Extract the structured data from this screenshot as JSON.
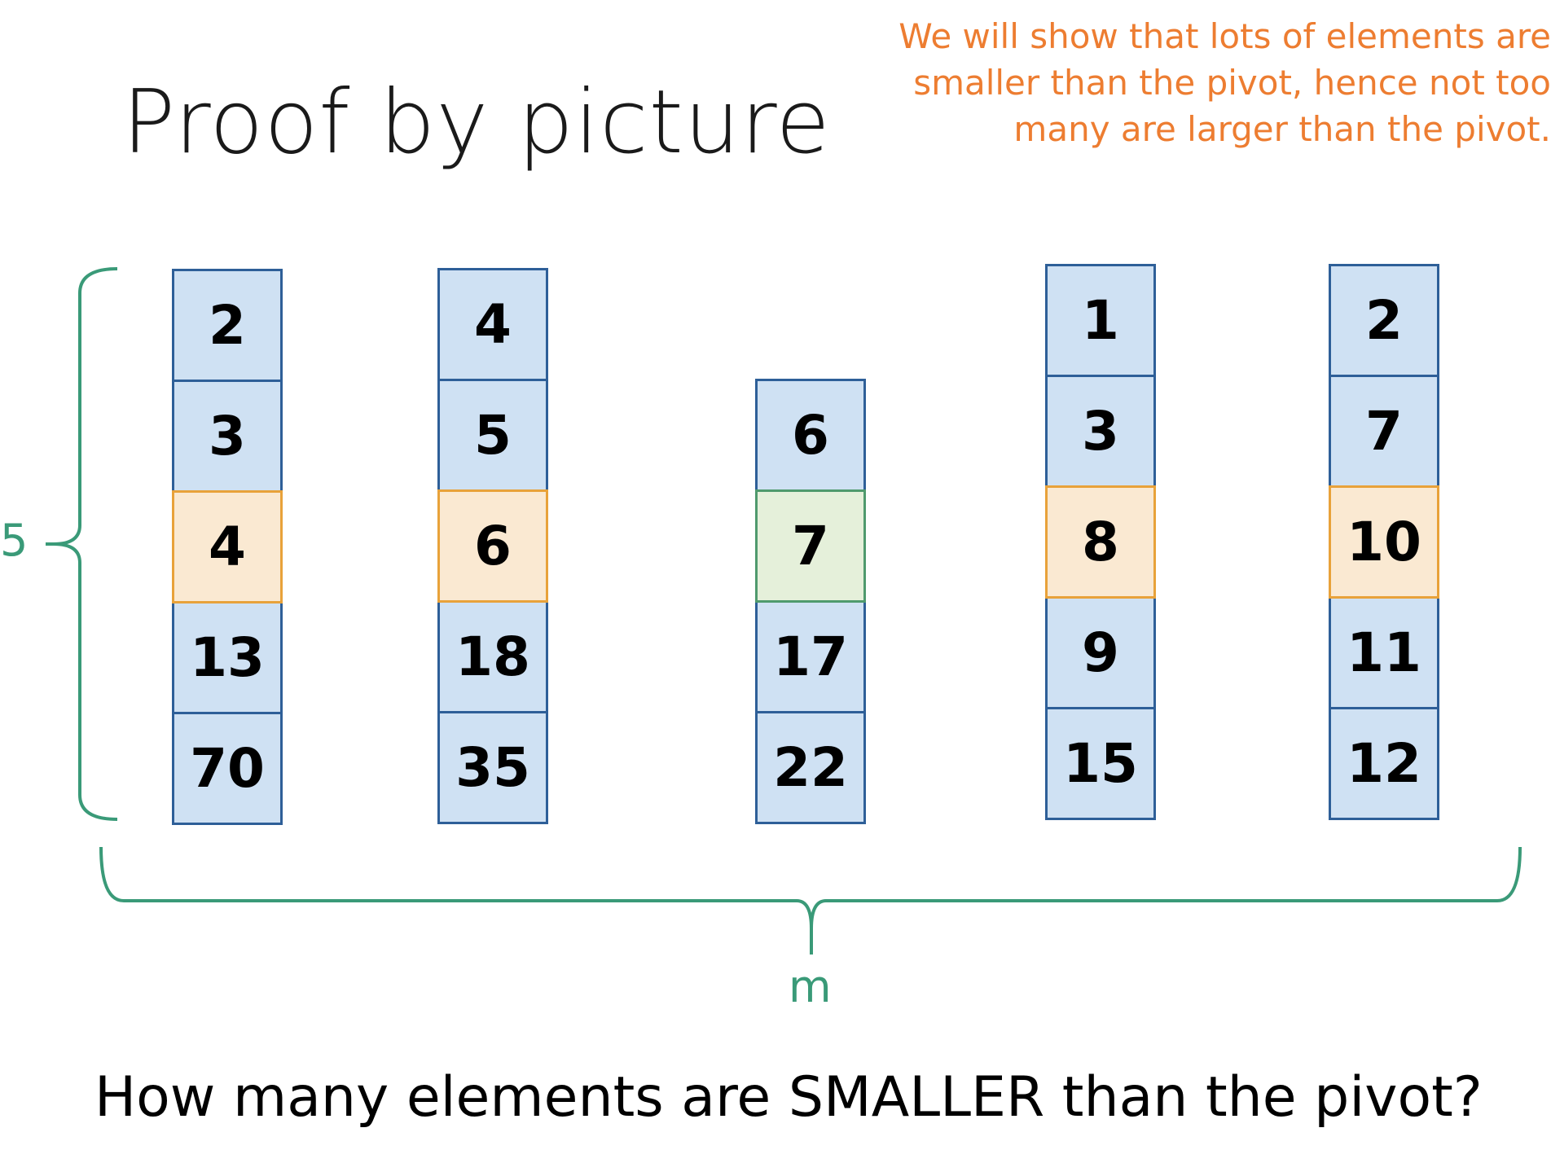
{
  "title": "Proof by picture",
  "note": {
    "lines": [
      "We will show that lots of elements are",
      "smaller than the pivot, hence not too",
      "many are larger than the pivot."
    ],
    "color": "#ed7d31"
  },
  "colors": {
    "normal_fill": "#cfe1f3",
    "normal_border": "#2e5f98",
    "median_fill": "#fae9d2",
    "median_border": "#e8a23a",
    "pivot_fill": "#e5f0da",
    "pivot_border": "#4f9a6d",
    "brace": "#3a9a78"
  },
  "columns": [
    {
      "values": [
        "2",
        "3",
        "4",
        "13",
        "70"
      ],
      "median_index": 2,
      "pivot": false
    },
    {
      "values": [
        "4",
        "5",
        "6",
        "18",
        "35"
      ],
      "median_index": 2,
      "pivot": false
    },
    {
      "values": [
        "6",
        "7",
        "17",
        "22"
      ],
      "median_index": 1,
      "pivot": true
    },
    {
      "values": [
        "1",
        "3",
        "8",
        "9",
        "15"
      ],
      "median_index": 2,
      "pivot": false
    },
    {
      "values": [
        "2",
        "7",
        "10",
        "11",
        "12"
      ],
      "median_index": 2,
      "pivot": false
    }
  ],
  "vertical_brace_label": "5",
  "horizontal_brace_label": "m",
  "question": "How many elements are SMALLER than the pivot?"
}
